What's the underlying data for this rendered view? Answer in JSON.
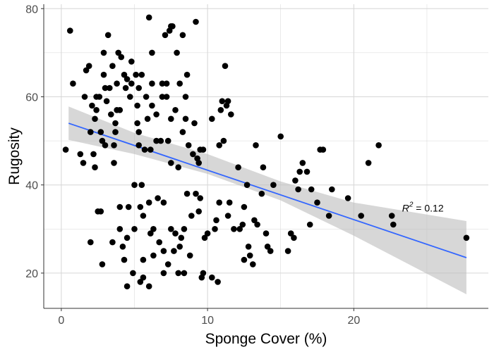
{
  "chart_data": {
    "type": "scatter",
    "title": "",
    "xlabel": "Sponge Cover (%)",
    "ylabel": "Rugosity",
    "xlim": [
      -1.2,
      29.2
    ],
    "ylim": [
      12,
      81
    ],
    "x_ticks": [
      0,
      10,
      20
    ],
    "y_ticks": [
      20,
      40,
      60,
      80
    ],
    "grid": true,
    "legend": "none",
    "annotation": {
      "base": "R",
      "sup": "2",
      "rest": " = 0.12",
      "x": 23.3,
      "y": 34
    },
    "colors": {
      "points": "#000000",
      "fit_line": "#3366ff",
      "ribbon": "#bdbdbd",
      "grid": "#d6d6d6",
      "axis": "#333333"
    },
    "fit": {
      "x": [
        0.5,
        27.7
      ],
      "y": [
        54.0,
        23.5
      ]
    },
    "ribbon": {
      "x": [
        0.5,
        5,
        10,
        15,
        20,
        27.7
      ],
      "upper": [
        57.8,
        51.8,
        47.0,
        40.8,
        36.0,
        31.8
      ],
      "lower": [
        50.2,
        47.0,
        42.5,
        36.5,
        28.5,
        15.2
      ]
    },
    "points": [
      {
        "x": 0.3,
        "y": 48
      },
      {
        "x": 0.6,
        "y": 75
      },
      {
        "x": 0.8,
        "y": 63
      },
      {
        "x": 1.3,
        "y": 47
      },
      {
        "x": 1.5,
        "y": 45
      },
      {
        "x": 1.6,
        "y": 60
      },
      {
        "x": 1.7,
        "y": 66
      },
      {
        "x": 1.9,
        "y": 67
      },
      {
        "x": 2.0,
        "y": 52
      },
      {
        "x": 2.0,
        "y": 27
      },
      {
        "x": 2.1,
        "y": 58
      },
      {
        "x": 2.2,
        "y": 47
      },
      {
        "x": 2.3,
        "y": 55
      },
      {
        "x": 2.3,
        "y": 44
      },
      {
        "x": 2.4,
        "y": 57
      },
      {
        "x": 2.4,
        "y": 60
      },
      {
        "x": 2.5,
        "y": 34
      },
      {
        "x": 2.6,
        "y": 60
      },
      {
        "x": 2.7,
        "y": 34
      },
      {
        "x": 2.7,
        "y": 52
      },
      {
        "x": 2.8,
        "y": 50
      },
      {
        "x": 2.8,
        "y": 22
      },
      {
        "x": 2.9,
        "y": 65
      },
      {
        "x": 2.9,
        "y": 70
      },
      {
        "x": 3.0,
        "y": 62
      },
      {
        "x": 3.0,
        "y": 49
      },
      {
        "x": 3.1,
        "y": 59
      },
      {
        "x": 3.2,
        "y": 74
      },
      {
        "x": 3.3,
        "y": 62
      },
      {
        "x": 3.4,
        "y": 56
      },
      {
        "x": 3.5,
        "y": 67
      },
      {
        "x": 3.5,
        "y": 27
      },
      {
        "x": 3.6,
        "y": 49
      },
      {
        "x": 3.6,
        "y": 45
      },
      {
        "x": 3.7,
        "y": 54
      },
      {
        "x": 3.7,
        "y": 52
      },
      {
        "x": 3.8,
        "y": 57
      },
      {
        "x": 3.8,
        "y": 63
      },
      {
        "x": 3.9,
        "y": 70
      },
      {
        "x": 4.0,
        "y": 57
      },
      {
        "x": 4.0,
        "y": 35
      },
      {
        "x": 4.0,
        "y": 30
      },
      {
        "x": 4.1,
        "y": 69
      },
      {
        "x": 4.2,
        "y": 26
      },
      {
        "x": 4.3,
        "y": 65
      },
      {
        "x": 4.3,
        "y": 23
      },
      {
        "x": 4.4,
        "y": 62
      },
      {
        "x": 4.5,
        "y": 64
      },
      {
        "x": 4.5,
        "y": 17
      },
      {
        "x": 4.5,
        "y": 28
      },
      {
        "x": 4.6,
        "y": 35
      },
      {
        "x": 4.7,
        "y": 60
      },
      {
        "x": 4.8,
        "y": 63
      },
      {
        "x": 4.8,
        "y": 68
      },
      {
        "x": 4.9,
        "y": 20
      },
      {
        "x": 5.0,
        "y": 30
      },
      {
        "x": 5.0,
        "y": 40
      },
      {
        "x": 5.1,
        "y": 65
      },
      {
        "x": 5.2,
        "y": 54
      },
      {
        "x": 5.2,
        "y": 58
      },
      {
        "x": 5.3,
        "y": 52
      },
      {
        "x": 5.3,
        "y": 62
      },
      {
        "x": 5.3,
        "y": 49
      },
      {
        "x": 5.4,
        "y": 35
      },
      {
        "x": 5.4,
        "y": 18
      },
      {
        "x": 5.5,
        "y": 40
      },
      {
        "x": 5.5,
        "y": 65
      },
      {
        "x": 5.6,
        "y": 23
      },
      {
        "x": 5.6,
        "y": 33
      },
      {
        "x": 5.6,
        "y": 19
      },
      {
        "x": 5.7,
        "y": 48
      },
      {
        "x": 5.8,
        "y": 60
      },
      {
        "x": 5.9,
        "y": 55
      },
      {
        "x": 6.0,
        "y": 78
      },
      {
        "x": 6.0,
        "y": 36
      },
      {
        "x": 6.0,
        "y": 17
      },
      {
        "x": 6.1,
        "y": 29
      },
      {
        "x": 6.1,
        "y": 48
      },
      {
        "x": 6.2,
        "y": 63
      },
      {
        "x": 6.2,
        "y": 70
      },
      {
        "x": 6.2,
        "y": 58
      },
      {
        "x": 6.3,
        "y": 24
      },
      {
        "x": 6.3,
        "y": 30
      },
      {
        "x": 6.5,
        "y": 50
      },
      {
        "x": 6.5,
        "y": 56
      },
      {
        "x": 6.6,
        "y": 37
      },
      {
        "x": 6.7,
        "y": 27
      },
      {
        "x": 6.8,
        "y": 50
      },
      {
        "x": 6.9,
        "y": 60
      },
      {
        "x": 6.9,
        "y": 63
      },
      {
        "x": 7.0,
        "y": 25
      },
      {
        "x": 7.0,
        "y": 36
      },
      {
        "x": 7.0,
        "y": 20
      },
      {
        "x": 7.1,
        "y": 74
      },
      {
        "x": 7.2,
        "y": 60
      },
      {
        "x": 7.2,
        "y": 63
      },
      {
        "x": 7.3,
        "y": 22
      },
      {
        "x": 7.3,
        "y": 50
      },
      {
        "x": 7.4,
        "y": 75
      },
      {
        "x": 7.5,
        "y": 76
      },
      {
        "x": 7.5,
        "y": 45
      },
      {
        "x": 7.5,
        "y": 55
      },
      {
        "x": 7.5,
        "y": 30
      },
      {
        "x": 7.6,
        "y": 76
      },
      {
        "x": 7.7,
        "y": 25
      },
      {
        "x": 7.8,
        "y": 29
      },
      {
        "x": 7.8,
        "y": 57
      },
      {
        "x": 7.9,
        "y": 70
      },
      {
        "x": 8.0,
        "y": 44
      },
      {
        "x": 8.0,
        "y": 20
      },
      {
        "x": 8.1,
        "y": 63
      },
      {
        "x": 8.1,
        "y": 26
      },
      {
        "x": 8.2,
        "y": 28
      },
      {
        "x": 8.3,
        "y": 74
      },
      {
        "x": 8.3,
        "y": 52
      },
      {
        "x": 8.4,
        "y": 30
      },
      {
        "x": 8.4,
        "y": 20
      },
      {
        "x": 8.5,
        "y": 60
      },
      {
        "x": 8.5,
        "y": 55
      },
      {
        "x": 8.6,
        "y": 65
      },
      {
        "x": 8.6,
        "y": 38
      },
      {
        "x": 8.7,
        "y": 49
      },
      {
        "x": 8.8,
        "y": 24
      },
      {
        "x": 8.9,
        "y": 33
      },
      {
        "x": 9.0,
        "y": 47
      },
      {
        "x": 9.1,
        "y": 54
      },
      {
        "x": 9.2,
        "y": 77
      },
      {
        "x": 9.2,
        "y": 38
      },
      {
        "x": 9.3,
        "y": 46
      },
      {
        "x": 9.4,
        "y": 45
      },
      {
        "x": 9.4,
        "y": 34
      },
      {
        "x": 9.5,
        "y": 48
      },
      {
        "x": 9.5,
        "y": 37
      },
      {
        "x": 9.6,
        "y": 19
      },
      {
        "x": 9.7,
        "y": 20
      },
      {
        "x": 9.7,
        "y": 48
      },
      {
        "x": 9.8,
        "y": 28
      },
      {
        "x": 10.0,
        "y": 29
      },
      {
        "x": 10.3,
        "y": 55
      },
      {
        "x": 10.3,
        "y": 19
      },
      {
        "x": 10.5,
        "y": 30
      },
      {
        "x": 10.6,
        "y": 32
      },
      {
        "x": 10.7,
        "y": 18
      },
      {
        "x": 10.8,
        "y": 49
      },
      {
        "x": 10.8,
        "y": 36
      },
      {
        "x": 10.9,
        "y": 57
      },
      {
        "x": 11.0,
        "y": 59
      },
      {
        "x": 11.1,
        "y": 50
      },
      {
        "x": 11.2,
        "y": 67
      },
      {
        "x": 11.3,
        "y": 58
      },
      {
        "x": 11.4,
        "y": 59
      },
      {
        "x": 11.4,
        "y": 33
      },
      {
        "x": 11.5,
        "y": 36
      },
      {
        "x": 11.6,
        "y": 56
      },
      {
        "x": 11.8,
        "y": 30
      },
      {
        "x": 12.1,
        "y": 44
      },
      {
        "x": 12.2,
        "y": 30
      },
      {
        "x": 12.4,
        "y": 31
      },
      {
        "x": 12.5,
        "y": 35
      },
      {
        "x": 12.5,
        "y": 23
      },
      {
        "x": 12.7,
        "y": 40
      },
      {
        "x": 12.8,
        "y": 26
      },
      {
        "x": 12.9,
        "y": 24
      },
      {
        "x": 13.1,
        "y": 22
      },
      {
        "x": 13.2,
        "y": 32
      },
      {
        "x": 13.3,
        "y": 49
      },
      {
        "x": 13.4,
        "y": 31
      },
      {
        "x": 13.7,
        "y": 38
      },
      {
        "x": 13.8,
        "y": 44
      },
      {
        "x": 14.0,
        "y": 29
      },
      {
        "x": 14.1,
        "y": 26
      },
      {
        "x": 14.3,
        "y": 25
      },
      {
        "x": 14.5,
        "y": 40
      },
      {
        "x": 15.0,
        "y": 51
      },
      {
        "x": 15.5,
        "y": 25
      },
      {
        "x": 15.7,
        "y": 29
      },
      {
        "x": 15.9,
        "y": 28
      },
      {
        "x": 16.0,
        "y": 41
      },
      {
        "x": 16.2,
        "y": 39
      },
      {
        "x": 16.3,
        "y": 43
      },
      {
        "x": 16.5,
        "y": 45
      },
      {
        "x": 16.8,
        "y": 43
      },
      {
        "x": 17.0,
        "y": 31
      },
      {
        "x": 17.1,
        "y": 39
      },
      {
        "x": 17.5,
        "y": 36
      },
      {
        "x": 17.7,
        "y": 48
      },
      {
        "x": 17.9,
        "y": 48
      },
      {
        "x": 18.3,
        "y": 33
      },
      {
        "x": 18.5,
        "y": 39
      },
      {
        "x": 19.6,
        "y": 37
      },
      {
        "x": 20.5,
        "y": 33
      },
      {
        "x": 21.0,
        "y": 45
      },
      {
        "x": 21.7,
        "y": 49
      },
      {
        "x": 22.6,
        "y": 33
      },
      {
        "x": 22.7,
        "y": 31
      },
      {
        "x": 27.7,
        "y": 28
      }
    ]
  }
}
